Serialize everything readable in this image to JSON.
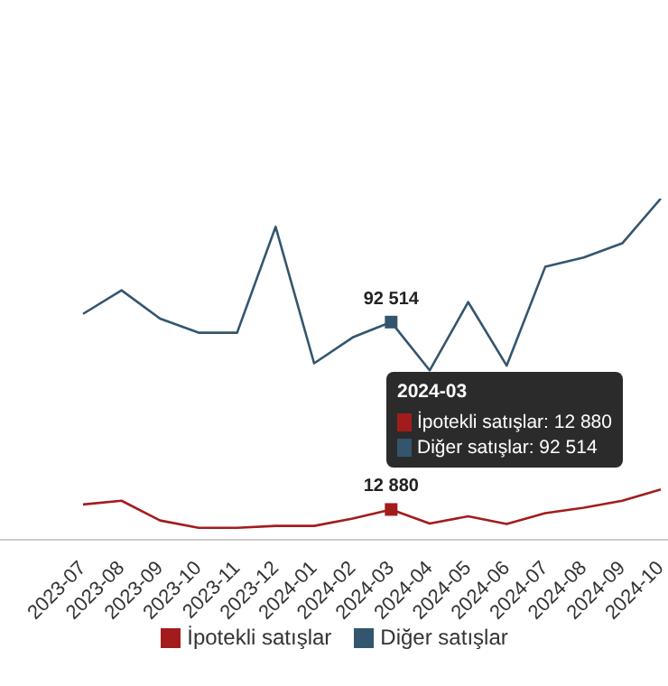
{
  "chart_data": {
    "type": "line",
    "categories": [
      "2023-07",
      "2023-08",
      "2023-09",
      "2023-10",
      "2023-11",
      "2023-12",
      "2024-01",
      "2024-02",
      "2024-03",
      "2024-04",
      "2024-05",
      "2024-06",
      "2024-07",
      "2024-08",
      "2024-09",
      "2024-10"
    ],
    "series": [
      {
        "name": "İpotekli satışlar",
        "color": "#a31c1c",
        "values": [
          15000,
          16600,
          8200,
          5100,
          5100,
          5900,
          5900,
          9000,
          12880,
          6900,
          10000,
          6700,
          11300,
          13600,
          16600,
          21400
        ],
        "value_labels": [
          null,
          null,
          null,
          null,
          null,
          null,
          null,
          null,
          "12 880",
          null,
          null,
          null,
          null,
          null,
          null,
          null
        ]
      },
      {
        "name": "Diğer satışlar",
        "color": "#34556e",
        "values": [
          96000,
          106000,
          94000,
          88000,
          88000,
          133000,
          75000,
          86000,
          92514,
          72000,
          101000,
          74000,
          116000,
          120000,
          126000,
          145000
        ],
        "value_labels": [
          null,
          null,
          null,
          null,
          null,
          null,
          null,
          null,
          "92 514",
          null,
          null,
          null,
          null,
          null,
          null,
          null
        ]
      }
    ],
    "legend": "bottom",
    "grid": false,
    "marker": "none",
    "annotations": [
      "2024-03",
      "İpotekli satışlar: 12 880",
      "Diğer satışlar: 92 514"
    ]
  }
}
